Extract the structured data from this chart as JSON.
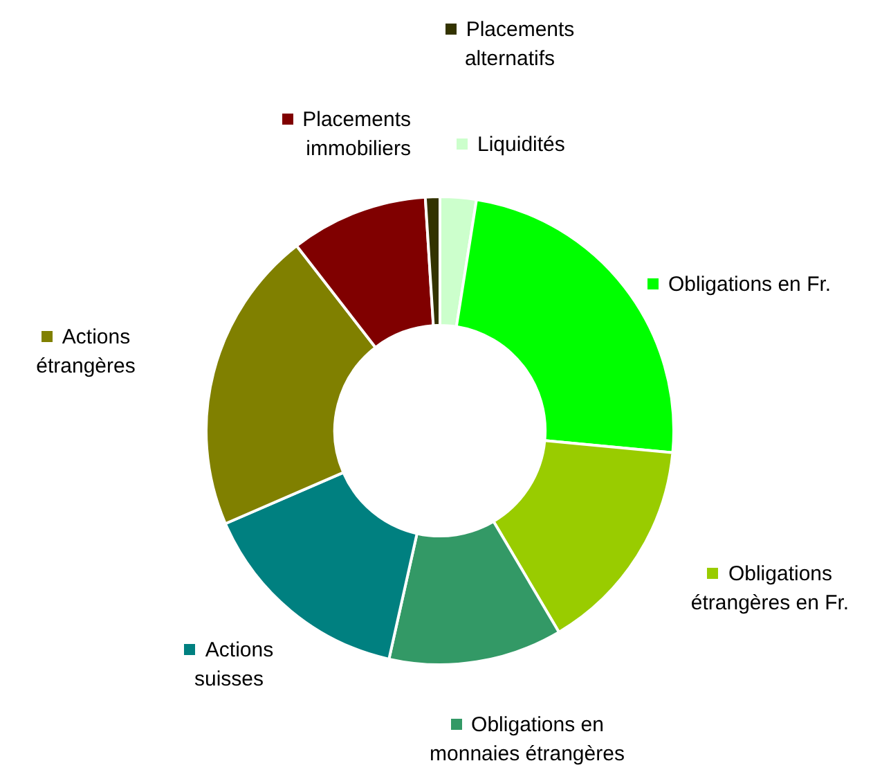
{
  "chart_data": {
    "type": "donut",
    "categories": [
      "Liquidités",
      "Obligations en Fr.",
      "Obligations étrangères en Fr.",
      "Obligations en monnaies étrangères",
      "Actions suisses",
      "Actions étrangères",
      "Placements immobiliers",
      "Placements alternatifs"
    ],
    "values": [
      2.5,
      24,
      15,
      12,
      15,
      21,
      9.5,
      1
    ],
    "colors": [
      "#ccffcc",
      "#00ff00",
      "#99cc00",
      "#339966",
      "#008080",
      "#808000",
      "#800000",
      "#333300"
    ],
    "legend": "right"
  }
}
